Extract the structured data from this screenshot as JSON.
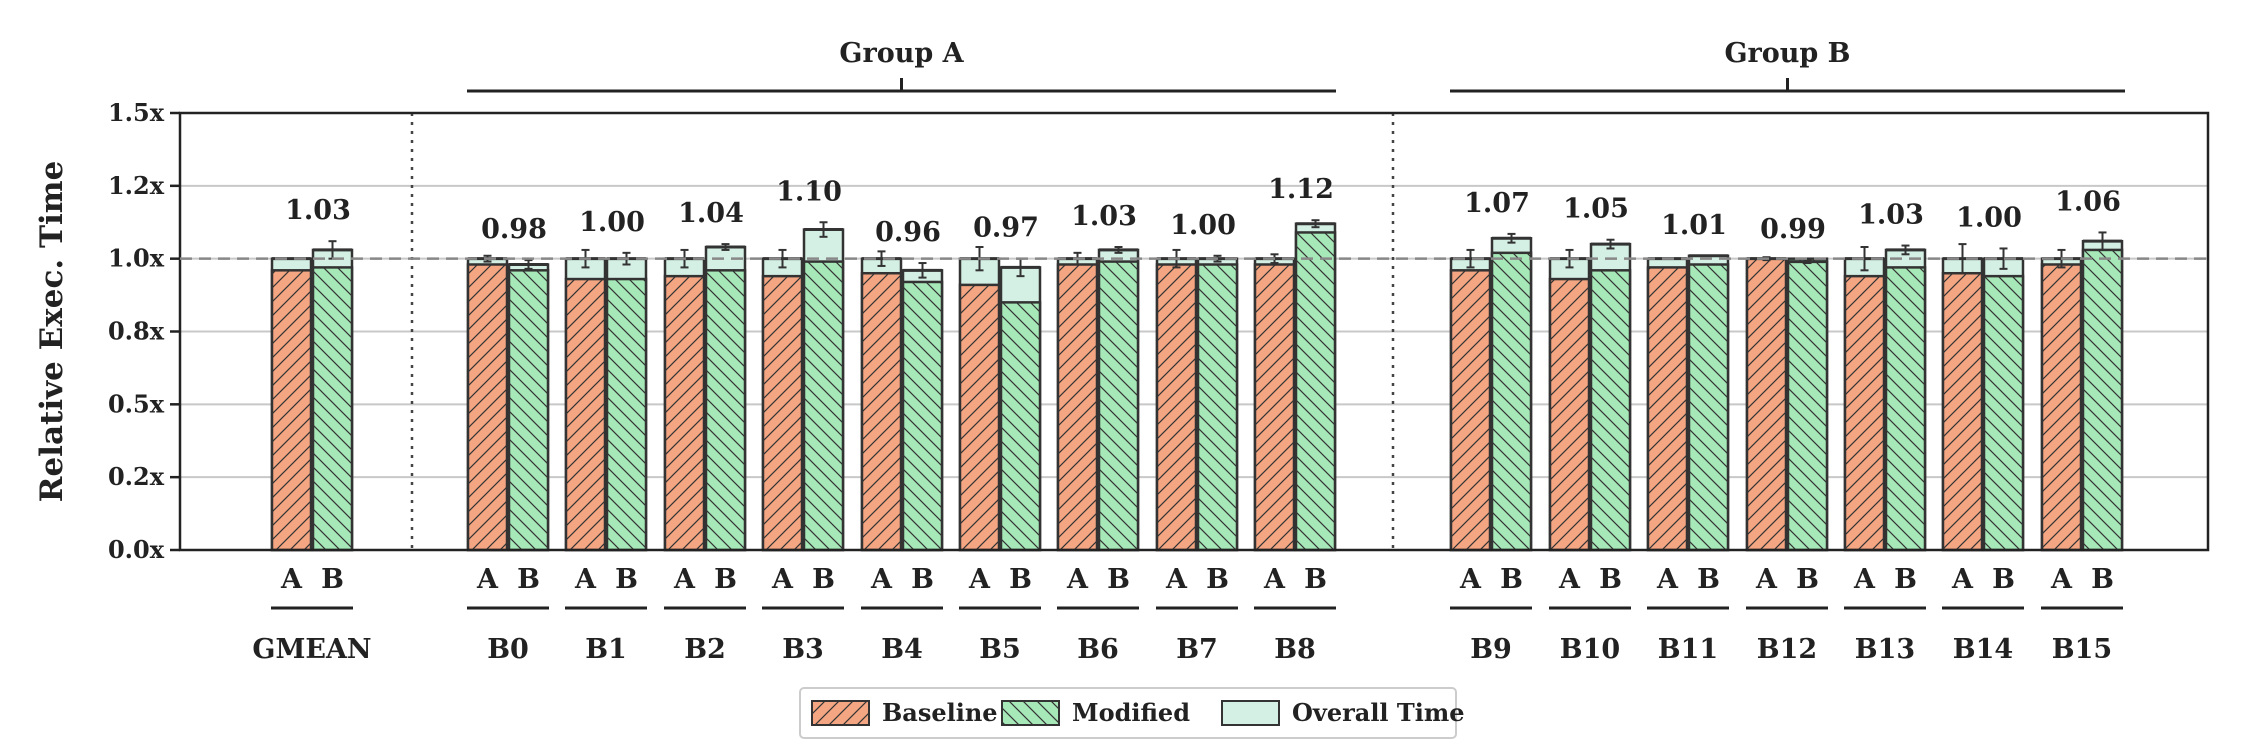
{
  "chart_data": {
    "type": "bar",
    "ylabel": "Relative Exec. Time",
    "ylim": [
      0,
      1.5
    ],
    "yticks": [
      0,
      0.25,
      0.5,
      0.75,
      1.0,
      1.25,
      1.5
    ],
    "ytick_labels": [
      "0.0x",
      "0.2x",
      "0.5x",
      "0.8x",
      "1.0x",
      "1.2x",
      "1.5x"
    ],
    "reference_line": 1.0,
    "grid": "horizontal",
    "bar_labels": [
      "A",
      "B"
    ],
    "groups": [
      {
        "name": "Group A",
        "first": "B0",
        "last": "B8"
      },
      {
        "name": "Group B",
        "first": "B9",
        "last": "B15"
      }
    ],
    "categories": [
      "GMEAN",
      "B0",
      "B1",
      "B2",
      "B3",
      "B4",
      "B5",
      "B6",
      "B7",
      "B8",
      "B9",
      "B10",
      "B11",
      "B12",
      "B13",
      "B14",
      "B15"
    ],
    "series": [
      {
        "name": "Baseline",
        "color": "#f4a582",
        "hatch": "/",
        "values": [
          0.96,
          0.98,
          0.93,
          0.94,
          0.94,
          0.95,
          0.91,
          0.98,
          0.98,
          0.98,
          0.96,
          0.93,
          0.97,
          1.0,
          0.94,
          0.95,
          0.98
        ],
        "overall": [
          1.0,
          1.0,
          1.0,
          1.0,
          1.0,
          1.0,
          1.0,
          1.0,
          1.0,
          1.0,
          1.0,
          1.0,
          1.0,
          1.0,
          1.0,
          1.0,
          1.0
        ],
        "err": [
          0,
          0.01,
          0.03,
          0.03,
          0.03,
          0.025,
          0.04,
          0.02,
          0.03,
          0.015,
          0.03,
          0.03,
          0,
          0.005,
          0.04,
          0.05,
          0.03
        ]
      },
      {
        "name": "Modified",
        "color": "#a6e8b8",
        "hatch": "\\",
        "values": [
          0.97,
          0.96,
          0.93,
          0.96,
          0.99,
          0.92,
          0.85,
          0.99,
          0.98,
          1.09,
          1.02,
          0.96,
          0.98,
          1.0,
          0.97,
          0.94,
          1.03
        ],
        "overall": [
          1.03,
          0.98,
          1.0,
          1.04,
          1.1,
          0.96,
          0.97,
          1.03,
          1.0,
          1.12,
          1.07,
          1.05,
          1.01,
          0.99,
          1.03,
          1.0,
          1.06
        ],
        "err": [
          0.03,
          0.015,
          0.02,
          0.01,
          0.025,
          0.025,
          0.03,
          0.01,
          0.01,
          0.012,
          0.015,
          0.015,
          0,
          0.005,
          0.015,
          0.035,
          0.03
        ]
      }
    ],
    "overall_color": "#d4efe4",
    "annotations": [
      "1.03",
      "0.98",
      "1.00",
      "1.04",
      "1.10",
      "0.96",
      "0.97",
      "1.03",
      "1.00",
      "1.12",
      "1.07",
      "1.05",
      "1.01",
      "0.99",
      "1.03",
      "1.00",
      "1.06"
    ],
    "legend": {
      "placement": "bottom-center",
      "entries": [
        {
          "label": "Baseline",
          "color": "#f4a582",
          "hatch": "/"
        },
        {
          "label": "Modified",
          "color": "#a6e8b8",
          "hatch": "\\"
        },
        {
          "label": "Overall Time",
          "color": "#d4efe4",
          "hatch": ""
        }
      ]
    }
  }
}
